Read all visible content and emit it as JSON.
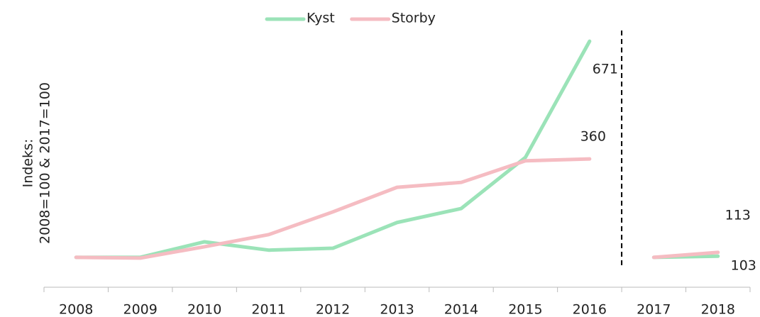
{
  "chart_data": {
    "type": "line",
    "ylabel": [
      "Indeks:",
      "2008=100 & 2017=100"
    ],
    "categories": [
      "2008",
      "2009",
      "2010",
      "2011",
      "2012",
      "2013",
      "2014",
      "2015",
      "2016",
      "2017",
      "2018"
    ],
    "divider": "2017",
    "ylim": [
      21,
      705
    ],
    "series": [
      {
        "name": "Kyst",
        "color": "#9be3b8",
        "values": [
          100,
          100,
          141,
          119,
          124,
          192,
          229,
          364,
          671,
          100,
          103
        ]
      },
      {
        "name": "Storby",
        "color": "#f5bcc2",
        "values": [
          100,
          98,
          128,
          160,
          220,
          285,
          298,
          355,
          360,
          100,
          113
        ]
      }
    ]
  }
}
